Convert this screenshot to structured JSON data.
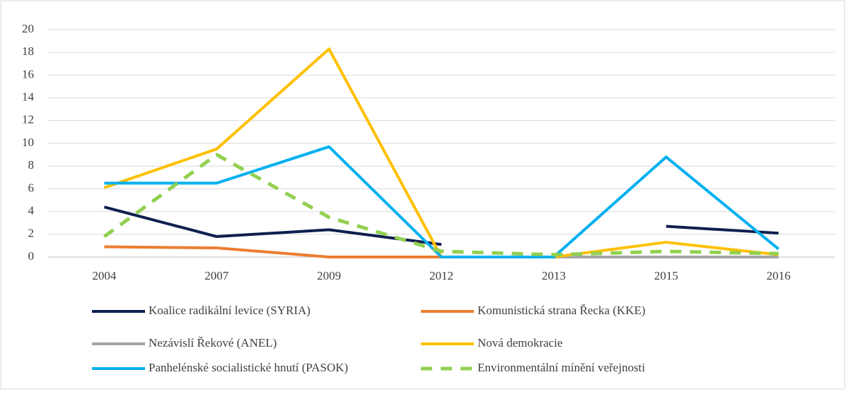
{
  "chart_data": {
    "type": "line",
    "categories": [
      "2004",
      "2007",
      "2009",
      "2012",
      "2013",
      "2015",
      "2016"
    ],
    "series": [
      {
        "name": "Koalice radikální levice (SYRIA)",
        "color": "#0f1f4f",
        "values": [
          4.4,
          1.8,
          2.4,
          1.1,
          null,
          2.7,
          2.1
        ]
      },
      {
        "name": "Komunistická strana Řecka (KKE)",
        "color": "#ed7d31",
        "values": [
          0.9,
          0.8,
          0,
          0,
          0,
          0,
          0
        ]
      },
      {
        "name": "Nezávislí Řekové (ANEL)",
        "color": "#a5a5a5",
        "values": [
          null,
          null,
          null,
          null,
          0,
          0,
          0
        ]
      },
      {
        "name": "Nová demokracie",
        "color": "#ffc000",
        "values": [
          6.1,
          9.5,
          18.3,
          0,
          0,
          1.3,
          0.2
        ]
      },
      {
        "name": "Panhelénské socialistické hnutí (PASOK)",
        "color": "#00b0f0",
        "values": [
          6.5,
          6.5,
          9.7,
          0,
          0,
          8.8,
          0.7
        ]
      },
      {
        "name": "Environmentální mínění veřejnosti",
        "color": "#92d050",
        "dashed": true,
        "values": [
          1.8,
          9.0,
          3.5,
          0.5,
          0.2,
          0.5,
          0.3
        ]
      }
    ],
    "ylim": [
      0,
      20
    ],
    "yticks": [
      0,
      2,
      4,
      6,
      8,
      10,
      12,
      14,
      16,
      18,
      20
    ],
    "grid": true,
    "legend": "bottom"
  }
}
